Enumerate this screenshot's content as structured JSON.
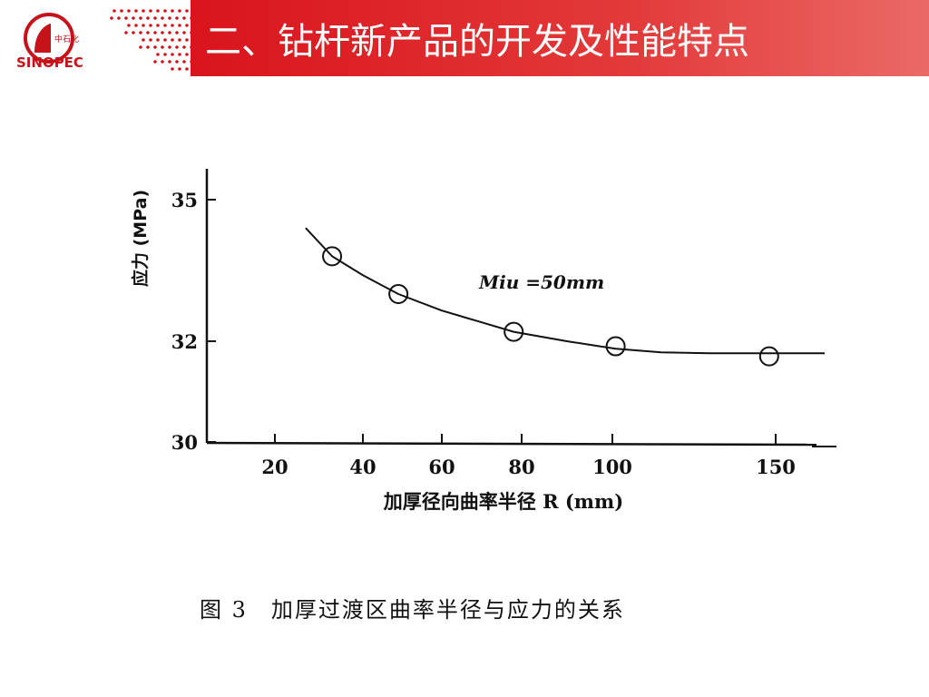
{
  "header": {
    "title": "二、钻杆新产品的开发及性能特点",
    "logo_text": "SINOPEC",
    "logo_icon": "sinopec-logo-icon",
    "accent_color": "#d9141c"
  },
  "caption": "图 3　加厚过渡区曲率半径与应力的关系",
  "chart_data": {
    "type": "scatter",
    "title": "",
    "xlabel": "加厚径向曲率半径 R (mm)",
    "ylabel": "应力 (MPa)",
    "annotation": "Miu =50mm",
    "x_ticks": [
      20,
      40,
      60,
      80,
      100,
      150
    ],
    "y_ticks": [
      30,
      32,
      35
    ],
    "series": [
      {
        "x": [
          33,
          49,
          78,
          101,
          148
        ],
        "y": [
          33.8,
          33.0,
          32.2,
          31.9,
          31.7
        ]
      }
    ],
    "fit_curve": {
      "x": [
        27,
        33,
        40,
        49,
        60,
        70,
        78,
        90,
        101,
        115,
        130,
        150,
        165
      ],
      "y": [
        34.4,
        33.8,
        33.4,
        33.0,
        32.65,
        32.4,
        32.2,
        32.0,
        31.85,
        31.78,
        31.76,
        31.76,
        31.76
      ]
    },
    "grid": false,
    "legend": "none"
  }
}
